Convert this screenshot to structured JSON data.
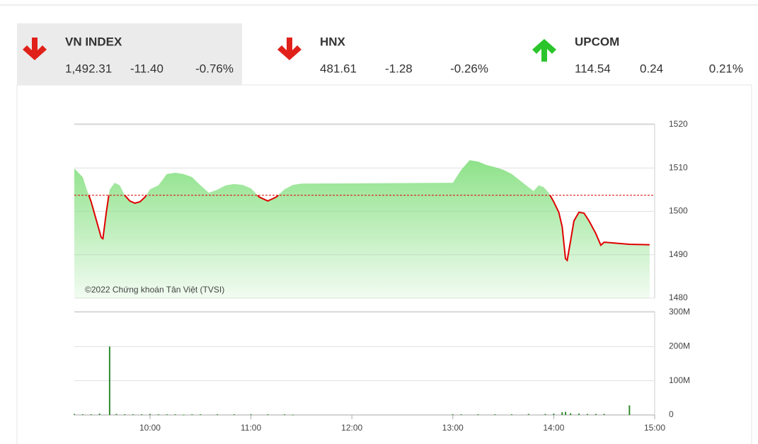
{
  "indices": [
    {
      "name": "VN INDEX",
      "value": "1,492.31",
      "change": "-11.40",
      "percent": "-0.76%",
      "direction": "down"
    },
    {
      "name": "HNX",
      "value": "481.61",
      "change": "-1.28",
      "percent": "-0.26%",
      "direction": "down"
    },
    {
      "name": "UPCOM",
      "value": "114.54",
      "change": "0.24",
      "percent": "0.21%",
      "direction": "up"
    }
  ],
  "chart_data": [
    {
      "type": "area",
      "watermark": "©2022 Chứng khoán Tân Việt (TVSI)",
      "x": [
        "09:15",
        "09:18",
        "09:20",
        "09:22",
        "09:25",
        "09:28",
        "09:31",
        "09:32",
        "09:34",
        "09:36",
        "09:39",
        "09:42",
        "09:45",
        "09:48",
        "09:51",
        "09:54",
        "09:57",
        "10:00",
        "10:05",
        "10:10",
        "10:15",
        "10:20",
        "10:25",
        "10:30",
        "10:35",
        "10:40",
        "10:45",
        "10:50",
        "10:55",
        "11:00",
        "11:05",
        "11:10",
        "11:15",
        "11:20",
        "11:25",
        "11:30",
        "13:00",
        "13:05",
        "13:10",
        "13:15",
        "13:20",
        "13:25",
        "13:30",
        "13:35",
        "13:40",
        "13:45",
        "13:48",
        "13:51",
        "13:54",
        "13:57",
        "14:00",
        "14:03",
        "14:05",
        "14:07",
        "14:08",
        "14:10",
        "14:12",
        "14:15",
        "14:18",
        "14:21",
        "14:25",
        "14:28",
        "14:30",
        "14:45",
        "14:57"
      ],
      "values": [
        1509.9,
        1508.7,
        1507.9,
        1505.5,
        1502.2,
        1498.1,
        1494.0,
        1493.7,
        1499.8,
        1505.0,
        1506.6,
        1506.0,
        1503.7,
        1502.4,
        1501.9,
        1502.2,
        1503.3,
        1505.1,
        1506.0,
        1508.6,
        1508.9,
        1508.6,
        1507.9,
        1506.0,
        1504.3,
        1505.0,
        1506.0,
        1506.3,
        1506.1,
        1505.3,
        1503.3,
        1502.4,
        1503.3,
        1505.1,
        1506.1,
        1506.4,
        1506.6,
        1509.6,
        1511.8,
        1511.5,
        1510.7,
        1510.2,
        1509.6,
        1508.6,
        1507.1,
        1505.6,
        1504.7,
        1506.0,
        1505.6,
        1504.3,
        1502.2,
        1499.8,
        1496.5,
        1489.1,
        1488.7,
        1493.2,
        1497.8,
        1499.8,
        1499.6,
        1497.8,
        1494.9,
        1492.2,
        1492.9,
        1492.4,
        1492.31
      ],
      "reference": 1503.71,
      "line_color": "#e00000",
      "area_color": "#8ee28a",
      "xlim": [
        "09:15",
        "15:00"
      ],
      "ylim": [
        1480,
        1520
      ],
      "yticks": [
        1480,
        1490,
        1500,
        1510,
        1520
      ],
      "grid": true
    },
    {
      "type": "bar",
      "color": "#2e8b2e",
      "x": [
        "09:15",
        "09:20",
        "09:25",
        "09:30",
        "09:36",
        "09:40",
        "09:45",
        "09:50",
        "09:55",
        "10:00",
        "10:05",
        "10:10",
        "10:15",
        "10:20",
        "10:25",
        "10:30",
        "10:40",
        "10:50",
        "11:00",
        "11:10",
        "11:20",
        "11:25",
        "13:00",
        "13:05",
        "13:15",
        "13:25",
        "13:35",
        "13:45",
        "13:55",
        "14:00",
        "14:05",
        "14:07",
        "14:10",
        "14:15",
        "14:20",
        "14:25",
        "14:30",
        "14:45"
      ],
      "values": [
        3000000,
        2000000,
        2000000,
        4000000,
        200000000,
        3000000,
        2000000,
        2000000,
        2000000,
        3000000,
        2000000,
        2000000,
        2000000,
        1000000,
        2000000,
        2000000,
        2000000,
        2000000,
        2000000,
        2000000,
        2000000,
        1000000,
        2000000,
        2000000,
        2000000,
        2000000,
        2000000,
        3000000,
        3000000,
        4000000,
        8000000,
        9000000,
        5000000,
        4000000,
        3000000,
        3000000,
        3000000,
        28000000
      ],
      "xlim": [
        "09:15",
        "15:00"
      ],
      "xticks": [
        "10:00",
        "11:00",
        "12:00",
        "13:00",
        "14:00",
        "15:00"
      ],
      "ylim": [
        0,
        300000000
      ],
      "yticks": [
        0,
        {
          "value": 100000000,
          "label": "100M"
        },
        {
          "value": 200000000,
          "label": "200M"
        },
        {
          "value": 300000000,
          "label": "300M"
        }
      ],
      "grid": true
    }
  ]
}
